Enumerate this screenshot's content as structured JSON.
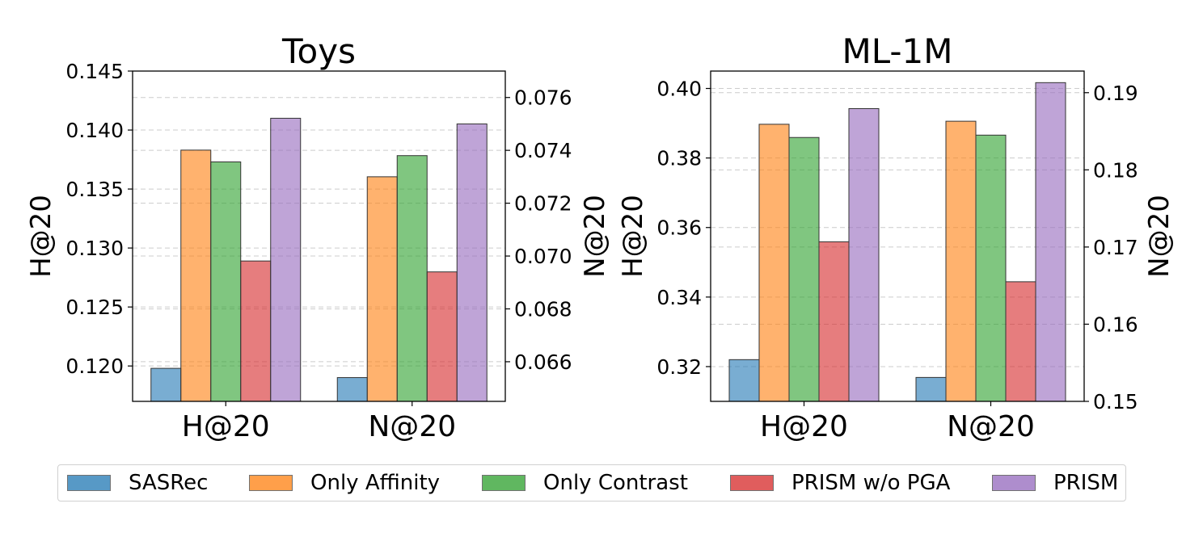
{
  "chart_data": [
    {
      "type": "bar",
      "title": "Toys",
      "categories": [
        "H@20",
        "N@20"
      ],
      "ylabel_left": "H@20",
      "ylabel_right": "N@20",
      "left_axis": {
        "ylim": [
          0.117,
          0.145
        ],
        "ticks": [
          "0.120",
          "0.125",
          "0.130",
          "0.135",
          "0.140",
          "0.145"
        ],
        "tick_values": [
          0.12,
          0.125,
          0.13,
          0.135,
          0.14,
          0.145
        ]
      },
      "right_axis": {
        "ylim": [
          0.0645,
          0.077
        ],
        "ticks": [
          "0.066",
          "0.068",
          "0.070",
          "0.072",
          "0.074",
          "0.076"
        ],
        "tick_values": [
          0.066,
          0.068,
          0.07,
          0.072,
          0.074,
          0.076
        ]
      },
      "grid": true,
      "series": [
        {
          "name": "SASRec",
          "values": [
            0.1198,
            0.0654
          ]
        },
        {
          "name": "Only Affinity",
          "values": [
            0.1383,
            0.073
          ]
        },
        {
          "name": "Only Contrast",
          "values": [
            0.1373,
            0.0738
          ]
        },
        {
          "name": "PRISM w/o PGA",
          "values": [
            0.1289,
            0.0694
          ]
        },
        {
          "name": "PRISM",
          "values": [
            0.141,
            0.075
          ]
        }
      ]
    },
    {
      "type": "bar",
      "title": "ML-1M",
      "categories": [
        "H@20",
        "N@20"
      ],
      "ylabel_left": "H@20",
      "ylabel_right": "N@20",
      "left_axis": {
        "ylim": [
          0.31,
          0.405
        ],
        "ticks": [
          "0.32",
          "0.34",
          "0.36",
          "0.38",
          "0.40"
        ],
        "tick_values": [
          0.32,
          0.34,
          0.36,
          0.38,
          0.4
        ]
      },
      "right_axis": {
        "ylim": [
          0.15,
          0.1928
        ],
        "ticks": [
          "0.15",
          "0.16",
          "0.17",
          "0.18",
          "0.19"
        ],
        "tick_values": [
          0.15,
          0.16,
          0.17,
          0.18,
          0.19
        ]
      },
      "grid": true,
      "series": [
        {
          "name": "SASRec",
          "values": [
            0.322,
            0.1531
          ]
        },
        {
          "name": "Only Affinity",
          "values": [
            0.3897,
            0.1863
          ]
        },
        {
          "name": "Only Contrast",
          "values": [
            0.3859,
            0.1845
          ]
        },
        {
          "name": "PRISM w/o PGA",
          "values": [
            0.3559,
            0.1655
          ]
        },
        {
          "name": "PRISM",
          "values": [
            0.3942,
            0.1913
          ]
        }
      ]
    }
  ],
  "legend": {
    "placement": "bottom",
    "items": [
      {
        "label": "SASRec",
        "color": "#1f77b4"
      },
      {
        "label": "Only Affinity",
        "color": "#ff7f0e"
      },
      {
        "label": "Only Contrast",
        "color": "#2ca02c"
      },
      {
        "label": "PRISM w/o PGA",
        "color": "#d62728"
      },
      {
        "label": "PRISM",
        "color": "#9467bd"
      }
    ]
  }
}
